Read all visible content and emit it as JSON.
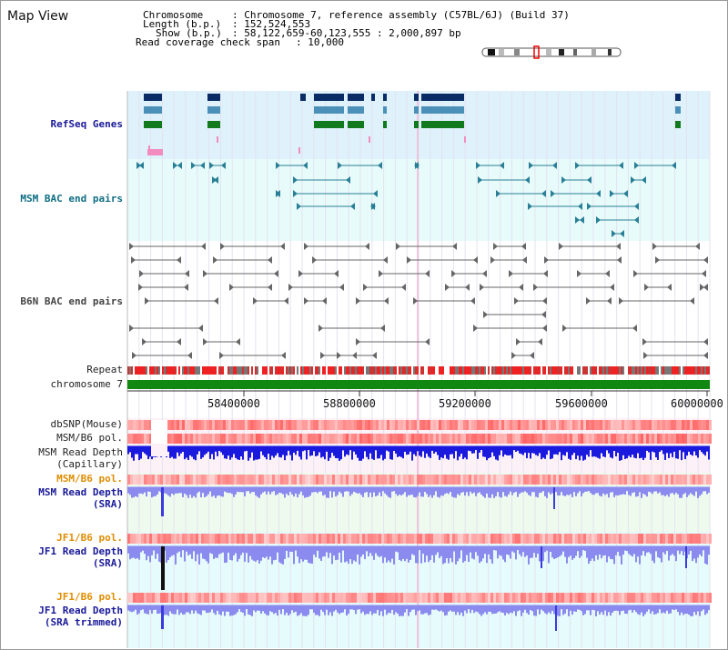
{
  "panel_title": "Map View",
  "info": {
    "chromosome_label": "Chromosome",
    "chromosome_value": ": Chromosome 7, reference assembly (C57BL/6J) (Build 37)",
    "length_label": "Length (b.p.)",
    "length_value": ": 152,524,553",
    "show_label": "Show (b.p.)",
    "show_value": ": 58,122,659-60,123,555 : 2,000,897 bp",
    "coverage_label": "Read coverage check span",
    "coverage_value": ": 10,000"
  },
  "tracks": {
    "refseq": "RefSeq Genes",
    "msm_bac": "MSM BAC end pairs",
    "b6n_bac": "B6N BAC end pairs",
    "repeat": "Repeat",
    "chromosome": "chromosome 7",
    "dbsnp": "dbSNP(Mouse)",
    "msm_b6_pol": "MSM/B6 pol.",
    "msm_depth_cap_1": "MSM Read Depth",
    "msm_depth_cap_2": "(Capillary)",
    "msm_b6_pol_2": "MSM/B6 pol.",
    "msm_depth_sra_1": "MSM Read Depth",
    "msm_depth_sra_2": "(SRA)",
    "jf1_b6_pol": "JF1/B6 pol.",
    "jf1_depth_sra_1": "JF1 Read Depth",
    "jf1_depth_sra_2": "(SRA)",
    "jf1_b6_pol_2": "JF1/B6 pol.",
    "jf1_depth_trim_1": "JF1 Read Depth",
    "jf1_depth_trim_2": "(SRA trimmed)"
  },
  "axis_ticks": [
    "58400000",
    "58800000",
    "59200000",
    "59600000",
    "60000000"
  ],
  "colors": {
    "refseq_bg": "#dff1fb",
    "bac_bg": "#e7fbfb",
    "repeat_red": "#ee2222",
    "chromosome_green": "#118811",
    "depth_blue": "#1a1adf",
    "depth_light_blue": "#8a8aef"
  }
}
